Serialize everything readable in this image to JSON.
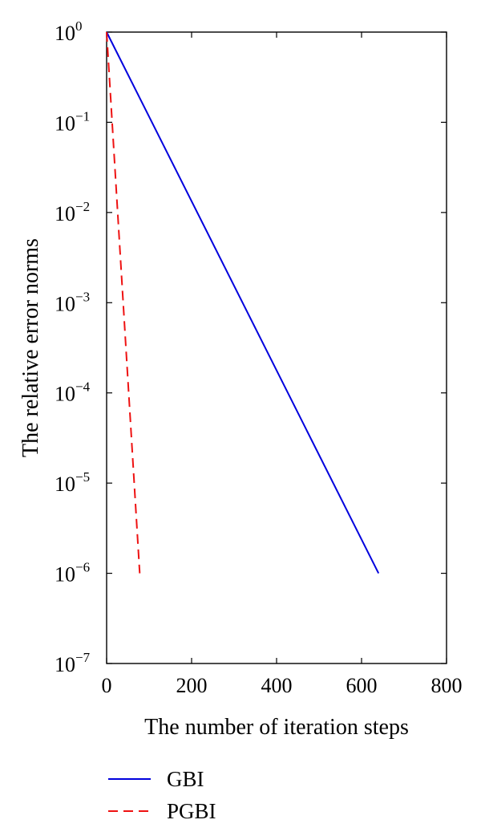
{
  "chart_data": {
    "type": "line",
    "xlabel": "The number of iteration steps",
    "ylabel": "The relative error norms",
    "xlim": [
      0,
      800
    ],
    "ylim": [
      1e-07,
      1
    ],
    "yscale": "log",
    "grid": false,
    "legend_position": "bottom",
    "x_ticks": [
      "0",
      "200",
      "400",
      "600",
      "800"
    ],
    "y_ticks": [
      {
        "base": "10",
        "exp": "0"
      },
      {
        "base": "10",
        "exp": "−1"
      },
      {
        "base": "10",
        "exp": "−2"
      },
      {
        "base": "10",
        "exp": "−3"
      },
      {
        "base": "10",
        "exp": "−4"
      },
      {
        "base": "10",
        "exp": "−5"
      },
      {
        "base": "10",
        "exp": "−6"
      },
      {
        "base": "10",
        "exp": "−7"
      }
    ],
    "series": [
      {
        "name": "GBI",
        "color": "#0000dd",
        "style": "solid",
        "x": [
          0,
          640
        ],
        "y": [
          1,
          1e-06
        ]
      },
      {
        "name": "PGBI",
        "color": "#ee1111",
        "style": "dashed",
        "x": [
          0,
          78
        ],
        "y": [
          1,
          1e-06
        ]
      }
    ]
  }
}
